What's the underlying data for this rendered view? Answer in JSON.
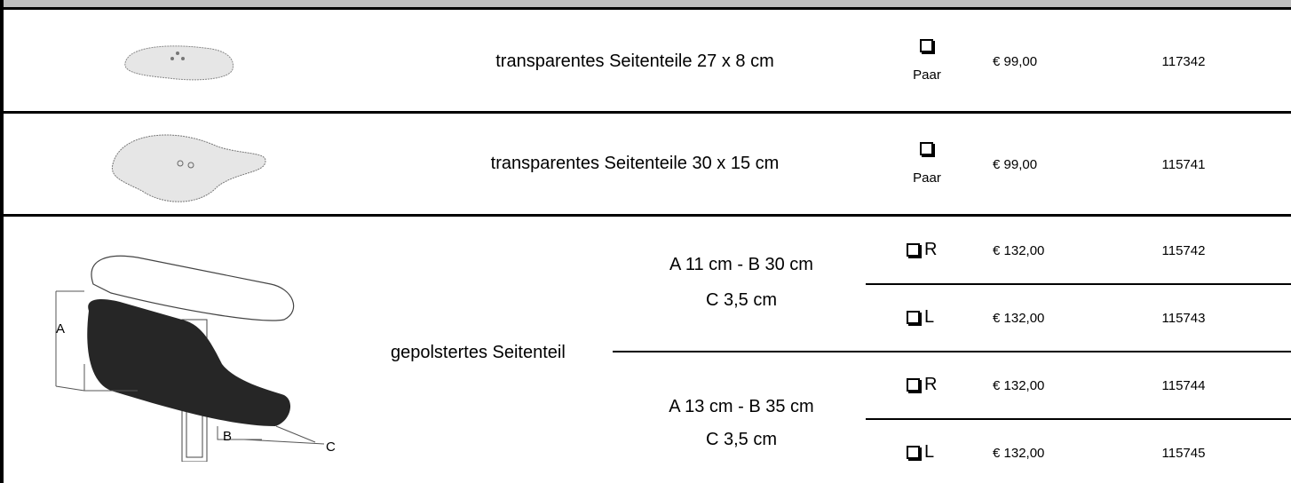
{
  "table": {
    "rows": [
      {
        "description": "transparentes Seitenteile 27 x 8 cm",
        "unit": "Paar",
        "price": "€ 99,00",
        "article": "117342"
      },
      {
        "description": "transparentes Seitenteile 30 x 15 cm",
        "unit": "Paar",
        "price": "€ 99,00",
        "article": "115741"
      }
    ],
    "group": {
      "description": "gepolstertes Seitenteil",
      "diagram_labels": [
        "A",
        "B",
        "C"
      ],
      "variants": [
        {
          "dimensions": [
            "A 11 cm - B 30 cm",
            "C 3,5 cm"
          ],
          "options": [
            {
              "side": "R",
              "price": "€ 132,00",
              "article": "115742"
            },
            {
              "side": "L",
              "price": "€ 132,00",
              "article": "115743"
            }
          ]
        },
        {
          "dimensions": [
            "A 13 cm - B 35 cm",
            "C 3,5 cm"
          ],
          "options": [
            {
              "side": "R",
              "price": "€ 132,00",
              "article": "115744"
            },
            {
              "side": "L",
              "price": "€ 132,00",
              "article": "115745"
            }
          ]
        }
      ]
    }
  }
}
